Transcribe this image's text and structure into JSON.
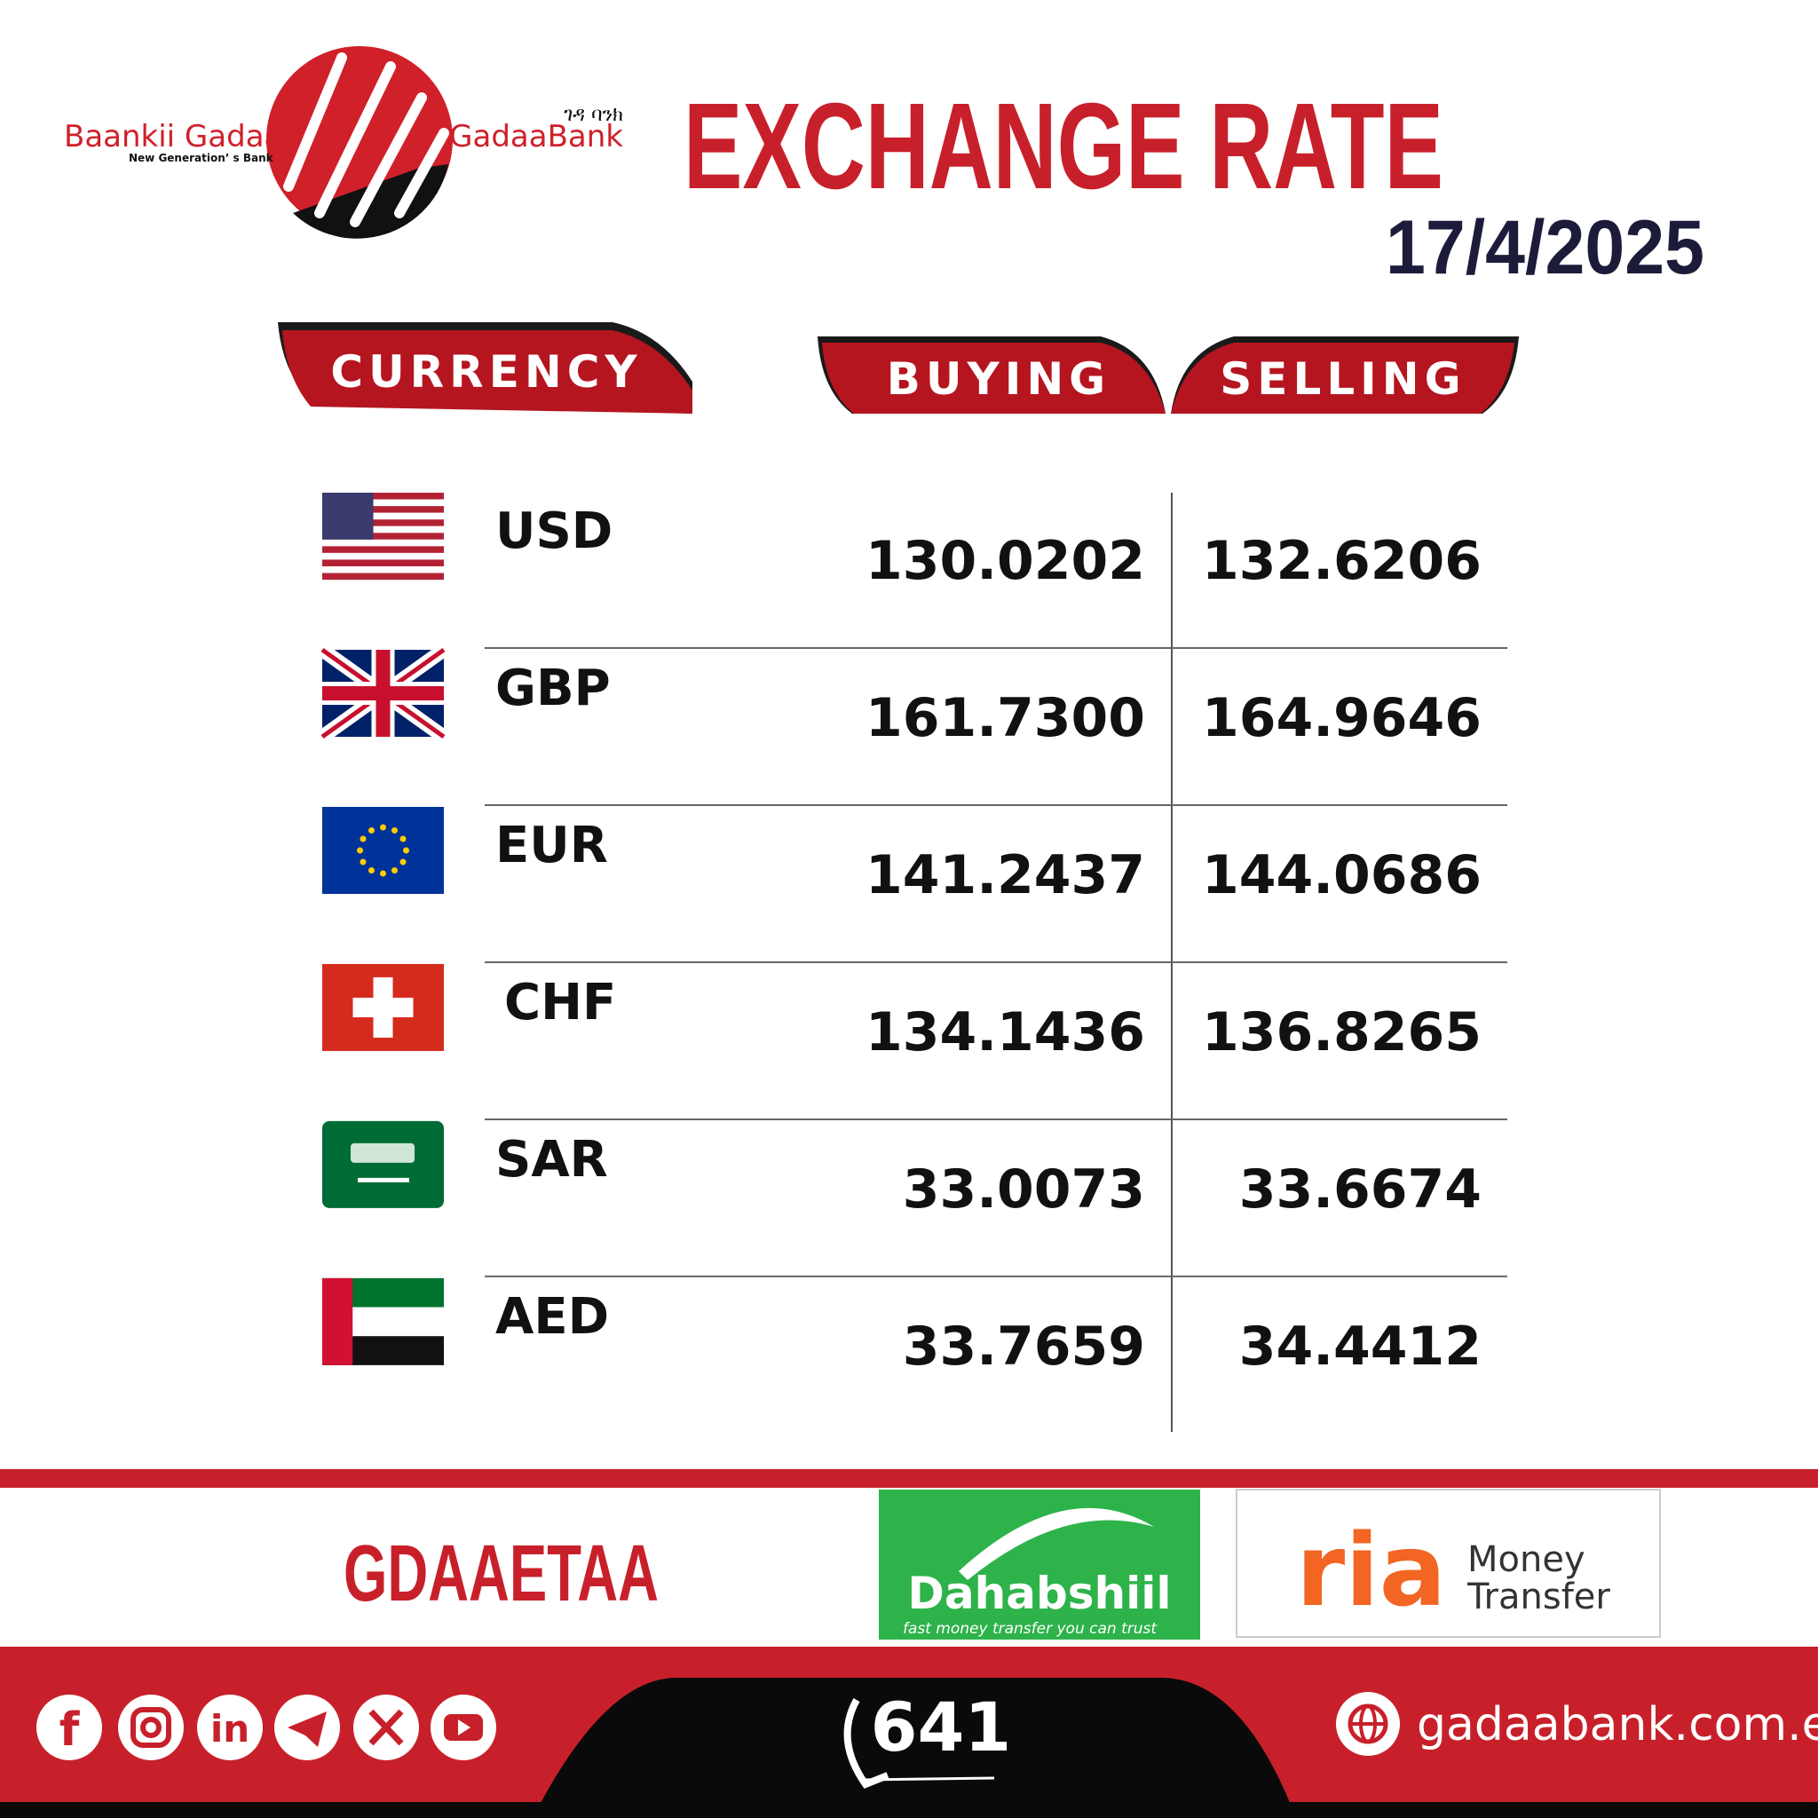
{
  "header": {
    "brand_left": "Baankii Gadaa",
    "tagline": "New Generation’ s Bank",
    "brand_amharic": "ገዳ ባንክ",
    "brand_right": "GadaaBank",
    "title": "EXCHANGE RATE",
    "date": "17/4/2025"
  },
  "table": {
    "columns": [
      "CURRENCY",
      "BUYING",
      "SELLING"
    ],
    "rows": [
      [
        "USD",
        "130.0202",
        "132.6206"
      ],
      [
        "GBP",
        "161.7300",
        "164.9646"
      ],
      [
        "EUR",
        "141.2437",
        "144.0686"
      ],
      [
        "CHF",
        "134.1436",
        "136.8265"
      ],
      [
        "SAR",
        "33.0073",
        "33.6674"
      ],
      [
        "AED",
        "33.7659",
        "34.4412"
      ]
    ]
  },
  "footer": {
    "partners_title": "GDAAETAA",
    "dahabshiil": "Dahabshiil",
    "dahabshiil_tagline": "fast money transfer you can trust",
    "ria": "ria",
    "ria_money": "Money",
    "ria_transfer": "Transfer",
    "social": [
      "f",
      "in"
    ],
    "phone": "641",
    "website": "gadaabank.com.et"
  }
}
